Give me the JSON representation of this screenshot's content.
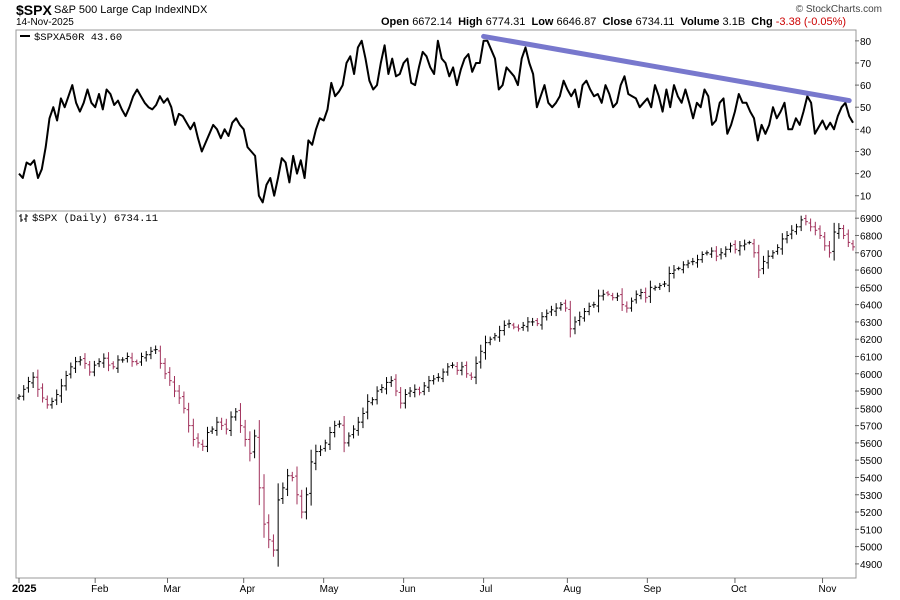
{
  "header": {
    "ticker": "$SPX",
    "name": "S&P 500 Large Cap Index",
    "exchange": "INDX",
    "date": "14-Nov-2025",
    "watermark": "© StockCharts.com",
    "open_label": "Open",
    "open": "6672.14",
    "high_label": "High",
    "high": "6774.31",
    "low_label": "Low",
    "low": "6646.87",
    "close_label": "Close",
    "close": "6734.11",
    "volume_label": "Volume",
    "volume": "3.1B",
    "chg_label": "Chg",
    "chg": "-3.38 (-0.05%)",
    "chg_color": "#cc0000"
  },
  "chart_data": [
    {
      "type": "line",
      "legend": "$SPXA50R 43.60",
      "series_color": "#000000",
      "trendline_color": "#6a6ac8",
      "yticks": [
        10,
        20,
        30,
        40,
        50,
        60,
        70,
        80
      ],
      "ylim": [
        4,
        84
      ],
      "values": [
        20,
        18,
        25,
        24,
        26,
        18,
        22,
        32,
        45,
        50,
        44,
        54,
        50,
        55,
        60,
        52,
        48,
        52,
        58,
        52,
        50,
        56,
        49,
        58,
        56,
        51,
        53,
        49,
        46,
        50,
        55,
        58,
        55,
        52,
        50,
        49,
        51,
        55,
        52,
        54,
        50,
        42,
        47,
        46,
        43,
        40,
        43,
        36,
        30,
        34,
        38,
        42,
        40,
        36,
        40,
        37,
        43,
        45,
        42,
        40,
        32,
        30,
        28,
        10,
        7,
        15,
        18,
        10,
        18,
        27,
        25,
        16,
        28,
        20,
        26,
        18,
        35,
        33,
        40,
        45,
        44,
        49,
        61,
        55,
        57,
        60,
        70,
        73,
        65,
        77,
        80,
        72,
        62,
        58,
        60,
        70,
        78,
        65,
        72,
        64,
        65,
        70,
        72,
        61,
        60,
        68,
        75,
        73,
        68,
        65,
        80,
        72,
        70,
        64,
        68,
        60,
        67,
        72,
        74,
        66,
        70,
        70,
        80,
        80,
        76,
        72,
        58,
        60,
        68,
        66,
        64,
        60,
        72,
        77,
        70,
        65,
        50,
        55,
        60,
        52,
        50,
        52,
        55,
        62,
        58,
        55,
        58,
        50,
        60,
        62,
        58,
        55,
        56,
        52,
        60,
        56,
        50,
        52,
        60,
        64,
        56,
        55,
        54,
        50,
        52,
        54,
        50,
        60,
        55,
        48,
        58,
        50,
        60,
        55,
        52,
        58,
        52,
        45,
        52,
        50,
        58,
        55,
        42,
        44,
        52,
        54,
        38,
        42,
        48,
        56,
        52,
        52,
        48,
        45,
        35,
        42,
        38,
        42,
        50,
        45,
        48,
        52,
        40,
        40,
        45,
        42,
        48,
        55,
        52,
        38,
        41,
        44,
        40,
        43,
        40,
        46,
        50,
        52,
        46,
        43
      ]
    },
    {
      "type": "bar",
      "subtype": "ohlc",
      "legend": "$SPX (Daily) 6734.11",
      "up_color": "#000000",
      "down_color": "#a0305a",
      "yticks": [
        4900,
        5000,
        5100,
        5200,
        5300,
        5400,
        5500,
        5600,
        5700,
        5800,
        5900,
        6000,
        6100,
        6200,
        6300,
        6400,
        6500,
        6600,
        6700,
        6800,
        6900
      ],
      "ylim": [
        4830,
        6930
      ],
      "closes": [
        5870,
        5910,
        5955,
        5980,
        5910,
        5860,
        5820,
        5840,
        5880,
        5930,
        5990,
        6040,
        6070,
        6080,
        6060,
        6010,
        6050,
        6070,
        6090,
        6050,
        6040,
        6080,
        6080,
        6100,
        6070,
        6060,
        6100,
        6110,
        6130,
        6140,
        6060,
        6000,
        5960,
        5900,
        5860,
        5800,
        5700,
        5620,
        5600,
        5580,
        5660,
        5680,
        5720,
        5700,
        5680,
        5750,
        5780,
        5700,
        5620,
        5540,
        5640,
        5340,
        5130,
        5040,
        4980,
        5270,
        5340,
        5410,
        5400,
        5300,
        5200,
        5300,
        5490,
        5550,
        5560,
        5600,
        5660,
        5700,
        5710,
        5600,
        5640,
        5680,
        5720,
        5770,
        5840,
        5850,
        5900,
        5920,
        5950,
        5960,
        5900,
        5830,
        5880,
        5900,
        5910,
        5890,
        5930,
        5960,
        5970,
        5980,
        6010,
        6040,
        6050,
        6020,
        6040,
        6000,
        5980,
        6060,
        6130,
        6180,
        6200,
        6220,
        6250,
        6280,
        6290,
        6270,
        6260,
        6280,
        6300,
        6300,
        6290,
        6330,
        6350,
        6370,
        6380,
        6400,
        6380,
        6260,
        6300,
        6330,
        6360,
        6390,
        6400,
        6450,
        6460,
        6460,
        6440,
        6450,
        6400,
        6380,
        6420,
        6460,
        6470,
        6440,
        6500,
        6500,
        6510,
        6520,
        6580,
        6600,
        6610,
        6630,
        6640,
        6650,
        6660,
        6690,
        6700,
        6710,
        6680,
        6700,
        6720,
        6740,
        6720,
        6740,
        6750,
        6760,
        6700,
        6600,
        6650,
        6680,
        6700,
        6730,
        6780,
        6800,
        6830,
        6850,
        6890,
        6880,
        6850,
        6830,
        6800,
        6740,
        6700,
        6820,
        6840,
        6800,
        6760,
        6734
      ]
    }
  ],
  "xaxis": {
    "labels": [
      "2025",
      "Feb",
      "Mar",
      "Apr",
      "May",
      "Jun",
      "Jul",
      "Aug",
      "Sep",
      "Oct",
      "Nov"
    ],
    "positions": [
      0,
      20,
      39,
      59,
      80,
      101,
      122,
      144,
      165,
      188,
      211
    ]
  }
}
